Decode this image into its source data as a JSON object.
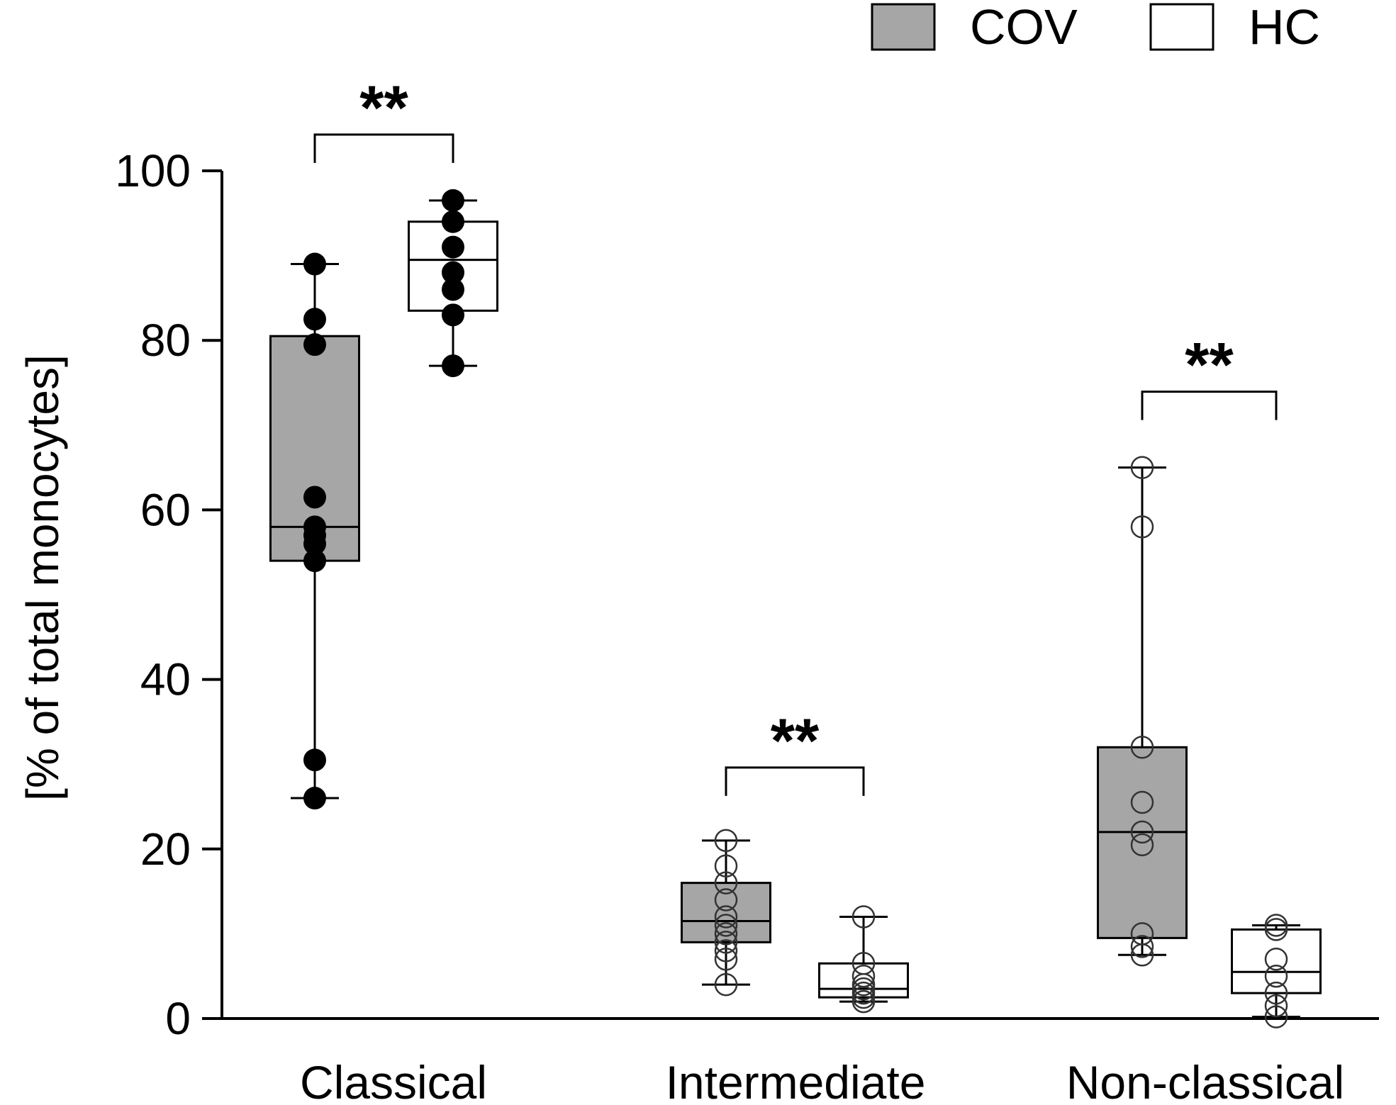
{
  "chart_data": {
    "type": "box",
    "ylabel": "[% of total monocytes]",
    "ylim": [
      0,
      100
    ],
    "yticks": [
      "0",
      "20",
      "40",
      "60",
      "80",
      "100"
    ],
    "categories": [
      "Classical",
      "Intermediate",
      "Non-classical"
    ],
    "legend": {
      "placement": "top-right",
      "entries": [
        {
          "name": "COV",
          "color": "#a6a6a6"
        },
        {
          "name": "HC",
          "color": "#ffffff"
        }
      ]
    },
    "series": [
      {
        "name": "COV",
        "fill": "#a6a6a6",
        "boxes": [
          {
            "category": "Classical",
            "min": 26,
            "q1": 54,
            "median": 58,
            "q3": 80.5,
            "max": 89,
            "points": [
              26,
              30.5,
              54,
              56,
              57,
              58,
              61.5,
              79.5,
              82.5,
              89
            ],
            "marker": "filled"
          },
          {
            "category": "Intermediate",
            "min": 4,
            "q1": 9,
            "median": 11.5,
            "q3": 16,
            "max": 21,
            "points": [
              4,
              7,
              8,
              9,
              10,
              11,
              12,
              14,
              16,
              18,
              21
            ],
            "marker": "open"
          },
          {
            "category": "Non-classical",
            "min": 7.5,
            "q1": 9.5,
            "median": 22,
            "q3": 32,
            "max": 65,
            "points": [
              7.5,
              8.5,
              10,
              20.5,
              22,
              25.5,
              32,
              58,
              65
            ],
            "marker": "open"
          }
        ]
      },
      {
        "name": "HC",
        "fill": "#ffffff",
        "boxes": [
          {
            "category": "Classical",
            "min": 77,
            "q1": 83.5,
            "median": 89.5,
            "q3": 94,
            "max": 96.5,
            "points": [
              77,
              83,
              86,
              88,
              91,
              94,
              96.5
            ],
            "marker": "filled"
          },
          {
            "category": "Intermediate",
            "min": 2,
            "q1": 2.5,
            "median": 3.5,
            "q3": 6.5,
            "max": 12,
            "points": [
              2,
              2.5,
              3,
              3.5,
              4,
              5,
              6.5,
              12
            ],
            "marker": "open"
          },
          {
            "category": "Non-classical",
            "min": 0.2,
            "q1": 3,
            "median": 5.5,
            "q3": 10.5,
            "max": 11,
            "points": [
              0.2,
              1.5,
              3,
              5,
              7,
              10.5,
              11
            ],
            "marker": "open"
          }
        ]
      }
    ],
    "annotations": [
      {
        "category": "Classical",
        "text": "**"
      },
      {
        "category": "Intermediate",
        "text": "**"
      },
      {
        "category": "Non-classical",
        "text": "**"
      }
    ]
  }
}
